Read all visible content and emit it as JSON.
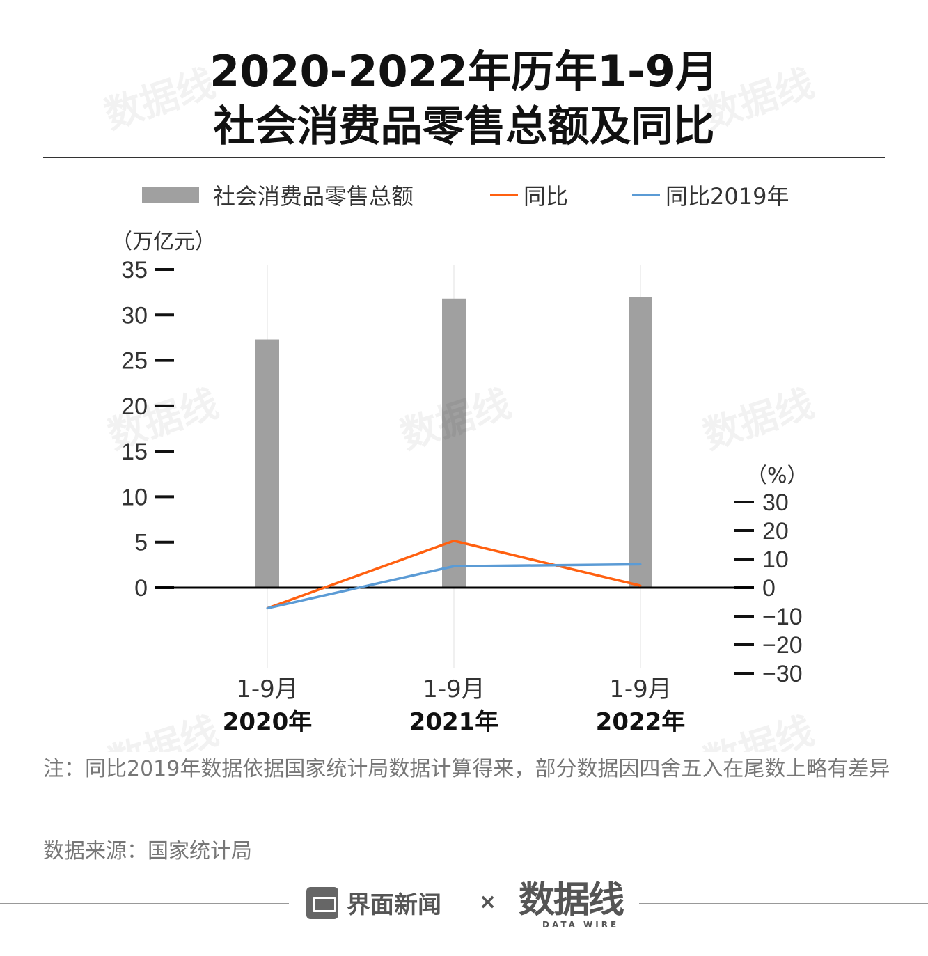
{
  "title": {
    "line1": "2020-2022年历年1-9月",
    "line2": "社会消费品零售总额及同比"
  },
  "legend": {
    "bar_label": "社会消费品零售总额",
    "line1_label": "同比",
    "line2_label": "同比2019年"
  },
  "colors": {
    "bar": "#a0a0a0",
    "line1": "#ff6010",
    "line2": "#5b9bd5",
    "axis": "#000000"
  },
  "chart_data": {
    "type": "bar",
    "categories": [
      {
        "period": "1-9月",
        "year": "2020年"
      },
      {
        "period": "1-9月",
        "year": "2021年"
      },
      {
        "period": "1-9月",
        "year": "2022年"
      }
    ],
    "y_left": {
      "unit_label": "（万亿元）",
      "ticks": [
        "35",
        "30",
        "25",
        "20",
        "15",
        "10",
        "5",
        "0"
      ],
      "range": [
        0,
        35
      ]
    },
    "y_right": {
      "unit_label": "（%）",
      "ticks": [
        "30",
        "20",
        "10",
        "0",
        "-10",
        "-20",
        "-30"
      ],
      "range": [
        -30,
        30
      ]
    },
    "series": [
      {
        "name": "社会消费品零售总额",
        "kind": "bar",
        "axis": "left",
        "values": [
          27.3,
          31.8,
          32.0
        ]
      },
      {
        "name": "同比",
        "kind": "line",
        "axis": "right",
        "values": [
          -7.2,
          16.4,
          0.7
        ]
      },
      {
        "name": "同比2019年",
        "kind": "line",
        "axis": "right",
        "values": [
          -7.2,
          7.5,
          8.2
        ]
      }
    ]
  },
  "watermark": "数据线",
  "note": "注：同比2019年数据依据国家统计局数据计算得来，部分数据因四舍五入在尾数上略有差异",
  "source": "数据来源：国家统计局",
  "footer": {
    "brand": "界面新闻",
    "times": "×",
    "datawire": "数据线",
    "datawire_sub": "DATA WIRE"
  }
}
